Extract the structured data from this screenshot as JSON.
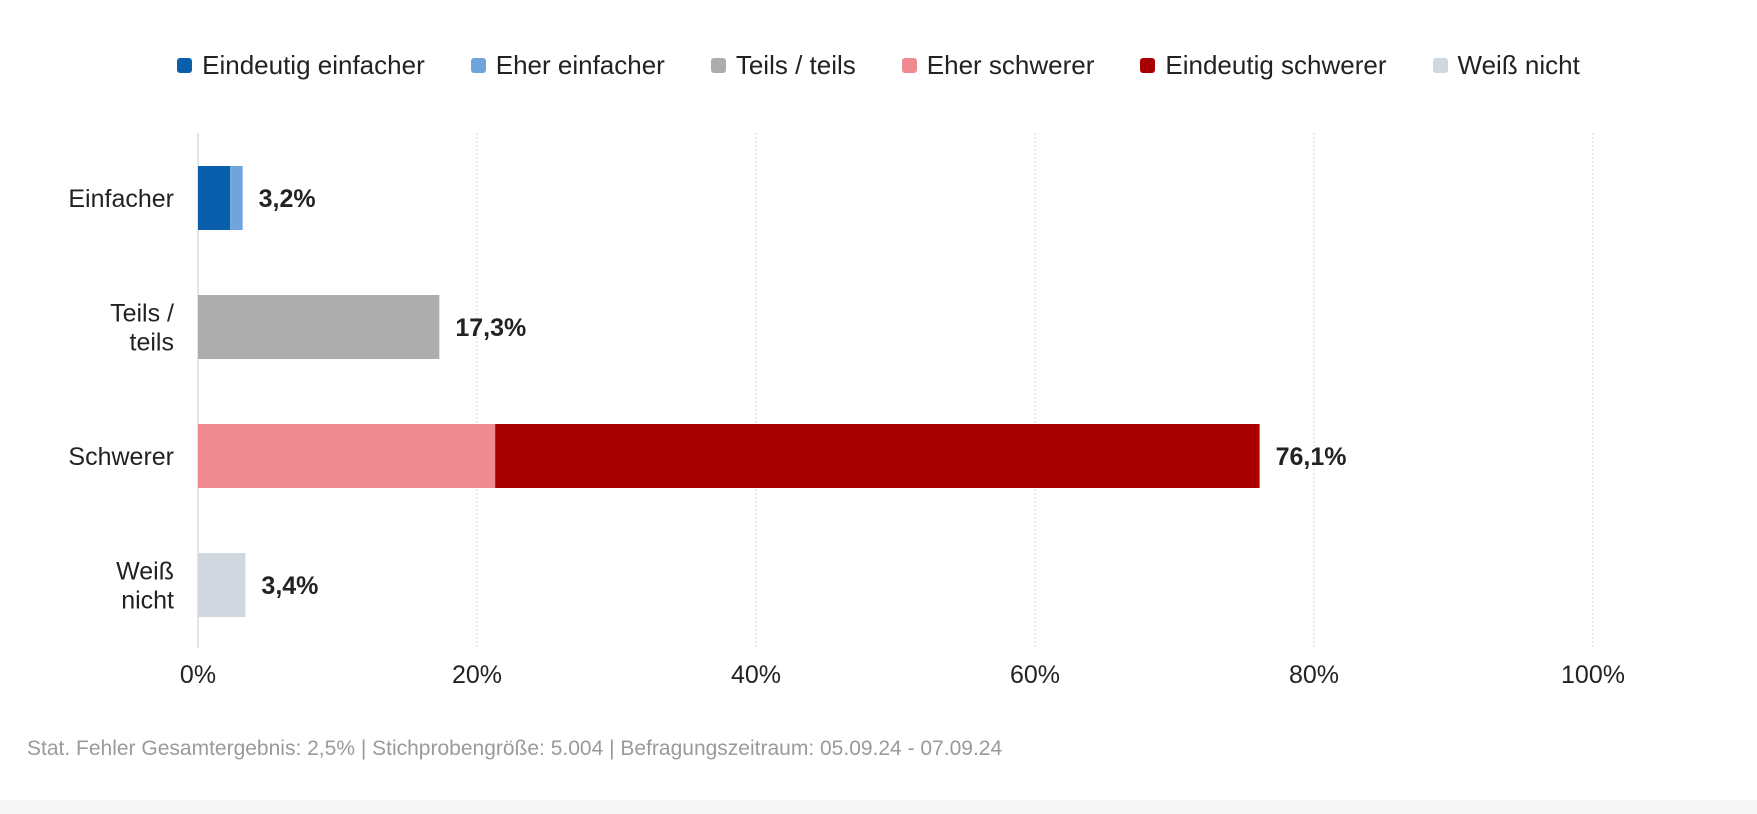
{
  "legend": [
    {
      "label": "Eindeutig einfacher",
      "color": "#0a5fad"
    },
    {
      "label": "Eher einfacher",
      "color": "#6fa4dc"
    },
    {
      "label": "Teils / teils",
      "color": "#adadad"
    },
    {
      "label": "Eher schwerer",
      "color": "#f08a91"
    },
    {
      "label": "Eindeutig schwerer",
      "color": "#a80000"
    },
    {
      "label": "Weiß nicht",
      "color": "#d0d7df"
    }
  ],
  "footer": {
    "note": "Stat. Fehler Gesamtergebnis: 2,5% | Stichprobengröße: 5.004 | Befragungszeitraum: 05.09.24 - 07.09.24"
  },
  "chart_data": {
    "type": "bar",
    "orientation": "horizontal",
    "stacked": true,
    "categories": [
      [
        "Einfacher"
      ],
      [
        "Teils /",
        "teils"
      ],
      [
        "Schwerer"
      ],
      [
        "Weiß",
        "nicht"
      ]
    ],
    "segments": [
      [
        {
          "series": "Eindeutig einfacher",
          "value": 2.3,
          "color": "#0a5fad"
        },
        {
          "series": "Eher einfacher",
          "value": 0.9,
          "color": "#6fa4dc"
        }
      ],
      [
        {
          "series": "Teils / teils",
          "value": 17.3,
          "color": "#adadad"
        }
      ],
      [
        {
          "series": "Eher schwerer",
          "value": 21.3,
          "color": "#f08a91"
        },
        {
          "series": "Eindeutig schwerer",
          "value": 54.8,
          "color": "#a80000"
        }
      ],
      [
        {
          "series": "Weiß nicht",
          "value": 3.4,
          "color": "#d0d7df"
        }
      ]
    ],
    "totals": [
      "3,2%",
      "17,3%",
      "76,1%",
      "3,4%"
    ],
    "xticks": [
      "0%",
      "20%",
      "40%",
      "60%",
      "80%",
      "100%"
    ],
    "xlim": [
      0,
      100
    ],
    "grid": "vertical dotted",
    "legend_position": "top"
  }
}
